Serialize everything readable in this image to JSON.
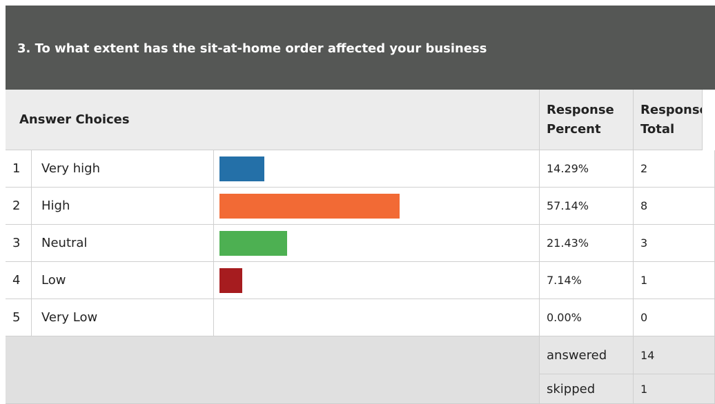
{
  "question": "3. To what extent has the sit-at-home order affected your business",
  "headers": {
    "choices": "Answer Choices",
    "percent": "Response Percent",
    "total": "Response Total"
  },
  "rows": [
    {
      "index": 1,
      "choice": "Very high",
      "percent": {
        "value": 14.29,
        "label": "14.29%"
      },
      "total": 2,
      "color": "#2470a8"
    },
    {
      "index": 2,
      "choice": "High",
      "percent": {
        "value": 57.14,
        "label": "57.14%"
      },
      "total": 8,
      "color": "#f26a35"
    },
    {
      "index": 3,
      "choice": "Neutral",
      "percent": {
        "value": 21.43,
        "label": "21.43%"
      },
      "total": 3,
      "color": "#4db052"
    },
    {
      "index": 4,
      "choice": "Low",
      "percent": {
        "value": 7.14,
        "label": "7.14%"
      },
      "total": 1,
      "color": "#a61c1f"
    },
    {
      "index": 5,
      "choice": "Very Low",
      "percent": {
        "value": 0,
        "label": "0.00%"
      },
      "total": 0,
      "color": "#999999"
    }
  ],
  "summary": [
    {
      "label": "answered",
      "value": 14
    },
    {
      "label": "skipped",
      "value": 1
    }
  ]
}
